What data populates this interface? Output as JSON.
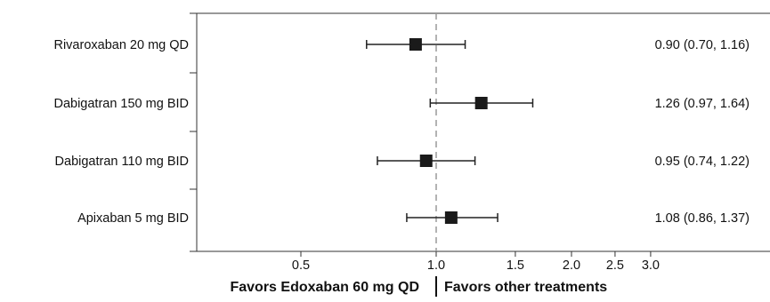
{
  "chart_data": {
    "type": "forest",
    "xscale": "log",
    "xlim": [
      0.3,
      4.5
    ],
    "reference_line": 1.0,
    "xticks": [
      0.5,
      1.0,
      1.5,
      2.0,
      2.5,
      3.0
    ],
    "xtick_labels": [
      "0.5",
      "1.0",
      "1.5",
      "2.0",
      "2.5",
      "3.0"
    ],
    "xlabel_left": "Favors Edoxaban 60 mg QD",
    "xlabel_right": "Favors other treatments",
    "rows": [
      {
        "label": "Rivaroxaban 20 mg QD",
        "estimate": 0.9,
        "lower": 0.7,
        "upper": 1.16,
        "text": "0.90 (0.70, 1.16)"
      },
      {
        "label": "Dabigatran 150 mg BID",
        "estimate": 1.26,
        "lower": 0.97,
        "upper": 1.64,
        "text": "1.26 (0.97, 1.64)"
      },
      {
        "label": "Dabigatran 110 mg BID",
        "estimate": 0.95,
        "lower": 0.74,
        "upper": 1.22,
        "text": "0.95 (0.74, 1.22)"
      },
      {
        "label": "Apixaban 5 mg BID",
        "estimate": 1.08,
        "lower": 0.86,
        "upper": 1.37,
        "text": "1.08 (0.86, 1.37)"
      }
    ],
    "colors": {
      "marker": "#1a1a1a",
      "line": "#222222",
      "reference": "#9a9a9a",
      "axis": "#333333"
    }
  }
}
